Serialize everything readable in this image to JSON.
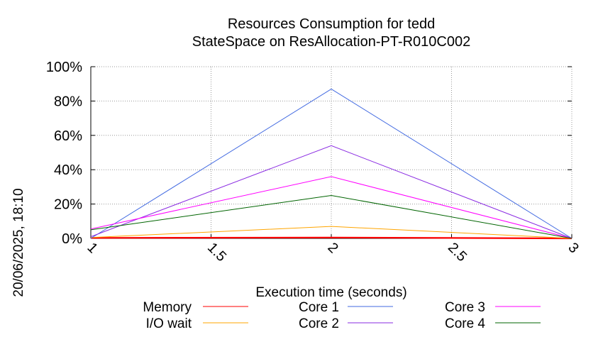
{
  "chart_data": {
    "type": "line",
    "title": "Resources Consumption for tedd",
    "subtitle": "StateSpace on ResAllocation-PT-R010C002",
    "xlabel": "Execution time (seconds)",
    "ylabel": "",
    "side_label": "20/06/2025, 18:10",
    "x": [
      1,
      2,
      3
    ],
    "xlim": [
      1,
      3
    ],
    "ylim": [
      0,
      100
    ],
    "x_ticks": [
      "1",
      "1.5",
      "2",
      "2.5",
      "3"
    ],
    "x_tick_values": [
      1,
      1.5,
      2,
      2.5,
      3
    ],
    "y_ticks": [
      "0%",
      "20%",
      "40%",
      "60%",
      "80%",
      "100%"
    ],
    "y_tick_values": [
      0,
      20,
      40,
      60,
      80,
      100
    ],
    "grid": true,
    "legend_position": "bottom",
    "series": [
      {
        "name": "Memory",
        "color": "#ff0000",
        "values": [
          0.3,
          0.5,
          0
        ]
      },
      {
        "name": "I/O wait",
        "color": "#ffa500",
        "values": [
          0.5,
          7,
          0
        ]
      },
      {
        "name": "Core 1",
        "color": "#4169e1",
        "values": [
          0,
          87,
          0
        ]
      },
      {
        "name": "Core 2",
        "color": "#8a2be2",
        "values": [
          1,
          54,
          0
        ]
      },
      {
        "name": "Core 3",
        "color": "#ff00ff",
        "values": [
          5.5,
          36,
          0
        ]
      },
      {
        "name": "Core 4",
        "color": "#006400",
        "values": [
          5,
          25,
          0
        ]
      }
    ]
  }
}
